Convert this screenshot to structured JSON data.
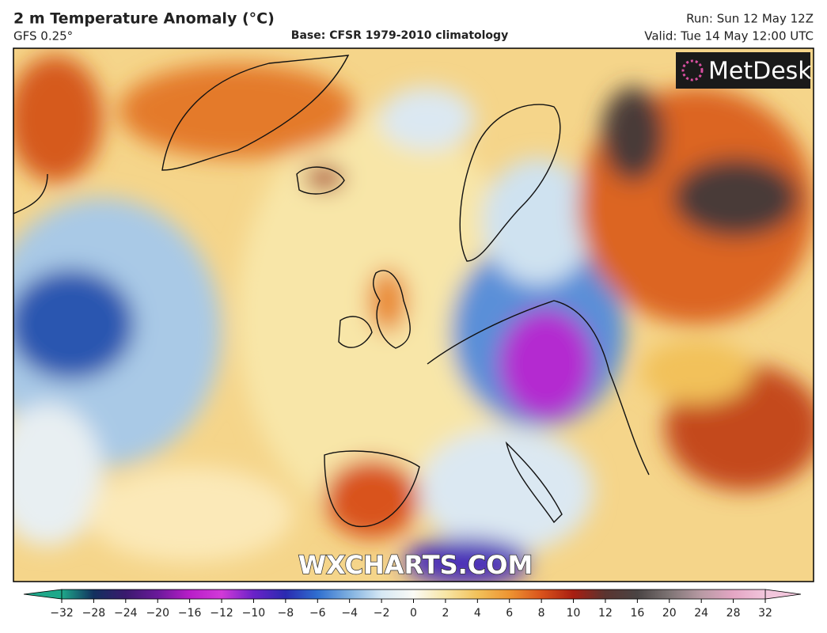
{
  "header": {
    "title": "2 m Temperature Anomaly (°C)",
    "model": "GFS 0.25°",
    "base": "Base: CFSR 1979-2010 climatology",
    "run": "Run: Sun 12 May 12Z",
    "valid": "Valid: Tue 14 May 12:00 UTC"
  },
  "logo": "MetDesk",
  "watermark": "WXCHARTS.COM",
  "colorbar": {
    "ticks": [
      {
        "value": -32,
        "label": "−32"
      },
      {
        "value": -28,
        "label": "−28"
      },
      {
        "value": -24,
        "label": "−24"
      },
      {
        "value": -20,
        "label": "−20"
      },
      {
        "value": -16,
        "label": "−16"
      },
      {
        "value": -12,
        "label": "−12"
      },
      {
        "value": -10,
        "label": "−10"
      },
      {
        "value": -8,
        "label": "−8"
      },
      {
        "value": -6,
        "label": "−6"
      },
      {
        "value": -4,
        "label": "−4"
      },
      {
        "value": -2,
        "label": "−2"
      },
      0,
      2,
      4,
      6,
      8,
      10,
      12,
      16,
      20,
      24,
      28,
      32
    ],
    "colors": [
      "#1fa88a",
      "#12305e",
      "#3a1a6e",
      "#6a1a9a",
      "#b81ec8",
      "#d23ad8",
      "#6a22c8",
      "#2a2ab0",
      "#2f6fd0",
      "#7fb0e0",
      "#d6e8f4",
      "#fafaf5",
      "#f8e6a6",
      "#f2c15a",
      "#ee9432",
      "#d9531c",
      "#a81e12",
      "#5a3430",
      "#4a4444",
      "#7e7474",
      "#b89aa4",
      "#e4a6c4",
      "#f2c6dc"
    ]
  }
}
